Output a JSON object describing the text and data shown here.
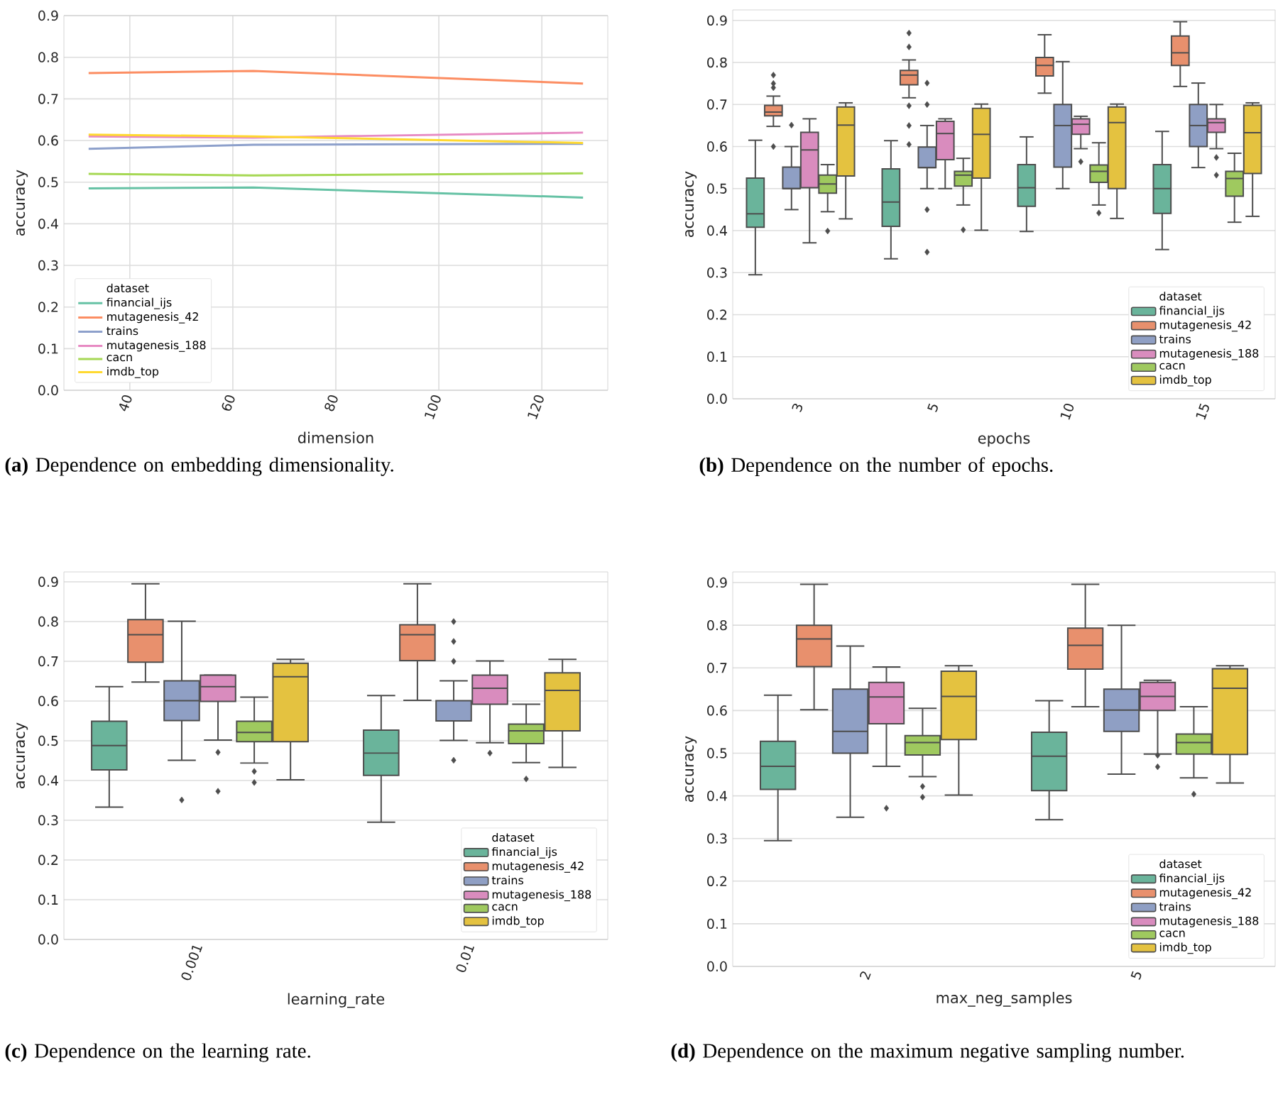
{
  "chart_data": [
    {
      "type": "line",
      "xlabel": "dimension",
      "ylabel": "accuracy",
      "legend_title": "dataset",
      "legend": "bottom left",
      "grid": true,
      "x": [
        32,
        64,
        128
      ],
      "xlim": [
        27.2,
        132.8
      ],
      "xticks": [
        40,
        60,
        80,
        100,
        120
      ],
      "ylim": [
        0,
        0.9
      ],
      "yticks": [
        {
          "value": 0,
          "label": "0.0"
        },
        {
          "value": 0.1,
          "label": "0.1"
        },
        {
          "value": 0.2,
          "label": "0.2"
        },
        {
          "value": 0.3,
          "label": "0.3"
        },
        {
          "value": 0.4,
          "label": "0.4"
        },
        {
          "value": 0.5,
          "label": "0.5"
        },
        {
          "value": 0.6,
          "label": "0.6"
        },
        {
          "value": 0.7,
          "label": "0.7"
        },
        {
          "value": 0.8,
          "label": "0.8"
        },
        {
          "value": 0.9,
          "label": "0.9"
        }
      ],
      "series": [
        {
          "name": "financial_ijs",
          "color": "#66c2a5",
          "values": [
            0.485,
            0.487,
            0.463
          ]
        },
        {
          "name": "mutagenesis_42",
          "color": "#fc8d62",
          "values": [
            0.762,
            0.767,
            0.737
          ]
        },
        {
          "name": "trains",
          "color": "#8da0cb",
          "values": [
            0.58,
            0.59,
            0.592
          ]
        },
        {
          "name": "mutagenesis_188",
          "color": "#e78ac3",
          "values": [
            0.61,
            0.607,
            0.619
          ]
        },
        {
          "name": "cacn",
          "color": "#a6d854",
          "values": [
            0.52,
            0.516,
            0.521
          ]
        },
        {
          "name": "imdb_top",
          "color": "#ffd92f",
          "values": [
            0.614,
            0.61,
            0.594
          ]
        }
      ],
      "annotations": [
        "**(a)** Dependence on embedding dimensionality."
      ]
    },
    {
      "type": "box",
      "xlabel": "epochs",
      "ylabel": "accuracy",
      "legend_title": "dataset",
      "legend": "bottom right",
      "grid": "y",
      "categories": [
        "3",
        "5",
        "10",
        "15"
      ],
      "ylim": [
        0,
        0.925
      ],
      "yticks": [
        {
          "value": 0,
          "label": "0.0"
        },
        {
          "value": 0.1,
          "label": "0.1"
        },
        {
          "value": 0.2,
          "label": "0.2"
        },
        {
          "value": 0.3,
          "label": "0.3"
        },
        {
          "value": 0.4,
          "label": "0.4"
        },
        {
          "value": 0.5,
          "label": "0.5"
        },
        {
          "value": 0.6,
          "label": "0.6"
        },
        {
          "value": 0.7,
          "label": "0.7"
        },
        {
          "value": 0.8,
          "label": "0.8"
        },
        {
          "value": 0.9,
          "label": "0.9"
        }
      ],
      "series": [
        {
          "name": "financial_ijs",
          "color": "#6ab49b",
          "boxes": [
            {
              "low": 0.295,
              "q1": 0.408,
              "median": 0.44,
              "q3": 0.525,
              "high": 0.615
            },
            {
              "low": 0.333,
              "q1": 0.41,
              "median": 0.468,
              "q3": 0.547,
              "high": 0.614
            },
            {
              "low": 0.398,
              "q1": 0.458,
              "median": 0.502,
              "q3": 0.557,
              "high": 0.623
            },
            {
              "low": 0.355,
              "q1": 0.441,
              "median": 0.5,
              "q3": 0.557,
              "high": 0.636
            }
          ]
        },
        {
          "name": "mutagenesis_42",
          "color": "#e8906d",
          "boxes": [
            {
              "low": 0.648,
              "q1": 0.673,
              "median": 0.682,
              "q3": 0.698,
              "high": 0.72,
              "outliers": [
                0.77,
                0.75,
                0.74,
                0.6
              ]
            },
            {
              "low": 0.716,
              "q1": 0.747,
              "median": 0.77,
              "q3": 0.781,
              "high": 0.806,
              "outliers": [
                0.87,
                0.837,
                0.697,
                0.65,
                0.605
              ]
            },
            {
              "low": 0.727,
              "q1": 0.768,
              "median": 0.793,
              "q3": 0.812,
              "high": 0.866
            },
            {
              "low": 0.743,
              "q1": 0.793,
              "median": 0.823,
              "q3": 0.863,
              "high": 0.897
            }
          ]
        },
        {
          "name": "trains",
          "color": "#8f9fc4",
          "boxes": [
            {
              "low": 0.45,
              "q1": 0.5,
              "median": 0.5,
              "q3": 0.551,
              "high": 0.6,
              "outliers": [
                0.651
              ]
            },
            {
              "low": 0.5,
              "q1": 0.55,
              "median": 0.55,
              "q3": 0.599,
              "high": 0.65,
              "outliers": [
                0.751,
                0.7,
                0.45,
                0.349
              ]
            },
            {
              "low": 0.5,
              "q1": 0.551,
              "median": 0.65,
              "q3": 0.7,
              "high": 0.802
            },
            {
              "low": 0.55,
              "q1": 0.6,
              "median": 0.65,
              "q3": 0.7,
              "high": 0.751
            }
          ]
        },
        {
          "name": "mutagenesis_188",
          "color": "#d98cbe",
          "boxes": [
            {
              "low": 0.371,
              "q1": 0.502,
              "median": 0.592,
              "q3": 0.634,
              "high": 0.666
            },
            {
              "low": 0.5,
              "q1": 0.569,
              "median": 0.631,
              "q3": 0.66,
              "high": 0.666
            },
            {
              "low": 0.595,
              "q1": 0.629,
              "median": 0.653,
              "q3": 0.666,
              "high": 0.672,
              "outliers": [
                0.564
              ]
            },
            {
              "low": 0.595,
              "q1": 0.634,
              "median": 0.657,
              "q3": 0.666,
              "high": 0.7,
              "outliers": [
                0.574,
                0.532
              ]
            }
          ]
        },
        {
          "name": "cacn",
          "color": "#9fc95f",
          "boxes": [
            {
              "low": 0.445,
              "q1": 0.489,
              "median": 0.511,
              "q3": 0.532,
              "high": 0.557,
              "outliers": [
                0.399
              ]
            },
            {
              "low": 0.461,
              "q1": 0.506,
              "median": 0.532,
              "q3": 0.541,
              "high": 0.572,
              "outliers": [
                0.402
              ]
            },
            {
              "low": 0.461,
              "q1": 0.515,
              "median": 0.541,
              "q3": 0.556,
              "high": 0.609,
              "outliers": [
                0.442
              ]
            },
            {
              "low": 0.42,
              "q1": 0.482,
              "median": 0.524,
              "q3": 0.541,
              "high": 0.584
            }
          ]
        },
        {
          "name": "imdb_top",
          "color": "#e4c240",
          "boxes": [
            {
              "low": 0.428,
              "q1": 0.53,
              "median": 0.651,
              "q3": 0.694,
              "high": 0.704
            },
            {
              "low": 0.401,
              "q1": 0.525,
              "median": 0.629,
              "q3": 0.691,
              "high": 0.701
            },
            {
              "low": 0.429,
              "q1": 0.5,
              "median": 0.657,
              "q3": 0.694,
              "high": 0.701
            },
            {
              "low": 0.434,
              "q1": 0.536,
              "median": 0.633,
              "q3": 0.698,
              "high": 0.704
            }
          ]
        }
      ],
      "annotations": [
        "**(b)** Dependence on the number of epochs."
      ]
    },
    {
      "type": "box",
      "xlabel": "learning_rate",
      "ylabel": "accuracy",
      "legend_title": "dataset",
      "legend": "bottom right",
      "grid": "y",
      "categories": [
        "0.001",
        "0.01"
      ],
      "ylim": [
        0,
        0.925
      ],
      "yticks": [
        {
          "value": 0,
          "label": "0.0"
        },
        {
          "value": 0.1,
          "label": "0.1"
        },
        {
          "value": 0.2,
          "label": "0.2"
        },
        {
          "value": 0.3,
          "label": "0.3"
        },
        {
          "value": 0.4,
          "label": "0.4"
        },
        {
          "value": 0.5,
          "label": "0.5"
        },
        {
          "value": 0.6,
          "label": "0.6"
        },
        {
          "value": 0.7,
          "label": "0.7"
        },
        {
          "value": 0.8,
          "label": "0.8"
        },
        {
          "value": 0.9,
          "label": "0.9"
        }
      ],
      "series": [
        {
          "name": "financial_ijs",
          "color": "#6ab49b",
          "boxes": [
            {
              "low": 0.333,
              "q1": 0.427,
              "median": 0.488,
              "q3": 0.549,
              "high": 0.636
            },
            {
              "low": 0.295,
              "q1": 0.413,
              "median": 0.469,
              "q3": 0.527,
              "high": 0.614
            }
          ]
        },
        {
          "name": "mutagenesis_42",
          "color": "#e8906d",
          "boxes": [
            {
              "low": 0.648,
              "q1": 0.698,
              "median": 0.767,
              "q3": 0.805,
              "high": 0.895
            },
            {
              "low": 0.602,
              "q1": 0.702,
              "median": 0.767,
              "q3": 0.792,
              "high": 0.895
            }
          ]
        },
        {
          "name": "trains",
          "color": "#8f9fc4",
          "boxes": [
            {
              "low": 0.451,
              "q1": 0.551,
              "median": 0.601,
              "q3": 0.651,
              "high": 0.801,
              "outliers": [
                0.351
              ]
            },
            {
              "low": 0.501,
              "q1": 0.55,
              "median": 0.55,
              "q3": 0.601,
              "high": 0.651,
              "outliers": [
                0.8,
                0.75,
                0.7,
                0.451
              ]
            }
          ]
        },
        {
          "name": "mutagenesis_188",
          "color": "#d98cbe",
          "boxes": [
            {
              "low": 0.502,
              "q1": 0.599,
              "median": 0.636,
              "q3": 0.665,
              "high": 0.665,
              "outliers": [
                0.471,
                0.373
              ]
            },
            {
              "low": 0.495,
              "q1": 0.592,
              "median": 0.632,
              "q3": 0.665,
              "high": 0.701,
              "outliers": [
                0.469
              ]
            }
          ]
        },
        {
          "name": "cacn",
          "color": "#9fc95f",
          "boxes": [
            {
              "low": 0.444,
              "q1": 0.498,
              "median": 0.521,
              "q3": 0.549,
              "high": 0.61,
              "outliers": [
                0.423,
                0.395
              ]
            },
            {
              "low": 0.445,
              "q1": 0.493,
              "median": 0.525,
              "q3": 0.542,
              "high": 0.592,
              "outliers": [
                0.404
              ]
            }
          ]
        },
        {
          "name": "imdb_top",
          "color": "#e4c240",
          "boxes": [
            {
              "low": 0.402,
              "q1": 0.498,
              "median": 0.661,
              "q3": 0.695,
              "high": 0.705
            },
            {
              "low": 0.433,
              "q1": 0.525,
              "median": 0.627,
              "q3": 0.671,
              "high": 0.705
            }
          ]
        }
      ],
      "annotations": [
        "**(c)** Dependence on the learning rate."
      ]
    },
    {
      "type": "box",
      "xlabel": "max_neg_samples",
      "ylabel": "accuracy",
      "legend_title": "dataset",
      "legend": "bottom right",
      "grid": "y",
      "categories": [
        "2",
        "5"
      ],
      "ylim": [
        0,
        0.925
      ],
      "yticks": [
        {
          "value": 0,
          "label": "0.0"
        },
        {
          "value": 0.1,
          "label": "0.1"
        },
        {
          "value": 0.2,
          "label": "0.2"
        },
        {
          "value": 0.3,
          "label": "0.3"
        },
        {
          "value": 0.4,
          "label": "0.4"
        },
        {
          "value": 0.5,
          "label": "0.5"
        },
        {
          "value": 0.6,
          "label": "0.6"
        },
        {
          "value": 0.7,
          "label": "0.7"
        },
        {
          "value": 0.8,
          "label": "0.8"
        },
        {
          "value": 0.9,
          "label": "0.9"
        }
      ],
      "series": [
        {
          "name": "financial_ijs",
          "color": "#6ab49b",
          "boxes": [
            {
              "low": 0.295,
              "q1": 0.415,
              "median": 0.469,
              "q3": 0.528,
              "high": 0.636
            },
            {
              "low": 0.344,
              "q1": 0.412,
              "median": 0.493,
              "q3": 0.549,
              "high": 0.623
            }
          ]
        },
        {
          "name": "mutagenesis_42",
          "color": "#e8906d",
          "boxes": [
            {
              "low": 0.602,
              "q1": 0.703,
              "median": 0.768,
              "q3": 0.8,
              "high": 0.896
            },
            {
              "low": 0.609,
              "q1": 0.697,
              "median": 0.753,
              "q3": 0.793,
              "high": 0.896
            }
          ]
        },
        {
          "name": "trains",
          "color": "#8f9fc4",
          "boxes": [
            {
              "low": 0.35,
              "q1": 0.5,
              "median": 0.551,
              "q3": 0.65,
              "high": 0.751
            },
            {
              "low": 0.451,
              "q1": 0.551,
              "median": 0.601,
              "q3": 0.65,
              "high": 0.8
            }
          ]
        },
        {
          "name": "mutagenesis_188",
          "color": "#d98cbe",
          "boxes": [
            {
              "low": 0.469,
              "q1": 0.569,
              "median": 0.632,
              "q3": 0.666,
              "high": 0.702,
              "outliers": [
                0.371
              ]
            },
            {
              "low": 0.498,
              "q1": 0.6,
              "median": 0.633,
              "q3": 0.666,
              "high": 0.671,
              "outliers": [
                0.495,
                0.468
              ]
            }
          ]
        },
        {
          "name": "cacn",
          "color": "#9fc95f",
          "boxes": [
            {
              "low": 0.445,
              "q1": 0.496,
              "median": 0.525,
              "q3": 0.541,
              "high": 0.605,
              "outliers": [
                0.422,
                0.397
              ]
            },
            {
              "low": 0.442,
              "q1": 0.498,
              "median": 0.525,
              "q3": 0.545,
              "high": 0.609,
              "outliers": [
                0.404
              ]
            }
          ]
        },
        {
          "name": "imdb_top",
          "color": "#e4c240",
          "boxes": [
            {
              "low": 0.402,
              "q1": 0.532,
              "median": 0.633,
              "q3": 0.692,
              "high": 0.705
            },
            {
              "low": 0.43,
              "q1": 0.497,
              "median": 0.652,
              "q3": 0.698,
              "high": 0.705
            }
          ]
        }
      ],
      "annotations": [
        "**(d)** Dependence on the maximum negative sampling number."
      ]
    }
  ]
}
